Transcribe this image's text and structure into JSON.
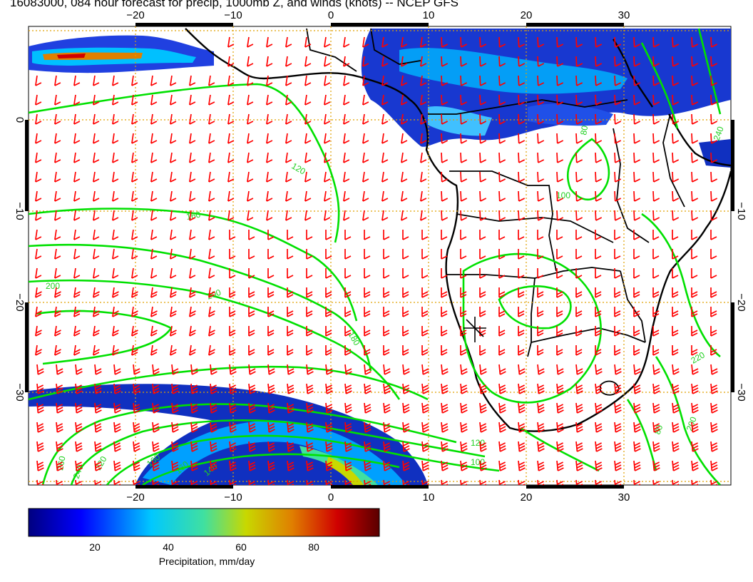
{
  "title": "16083000, 084 hour forecast for precip, 1000mb Z, and winds (knots) -- NCEP GFS",
  "lon_ticks": [
    "−20",
    "−10",
    "0",
    "10",
    "20",
    "30"
  ],
  "lat_ticks": [
    "0",
    "−10",
    "−20",
    "−30"
  ],
  "colorbar": {
    "label": "Precipitation, mm/day",
    "ticks": [
      "20",
      "40",
      "60",
      "80"
    ],
    "colors": [
      "#000080",
      "#0000ff",
      "#00c8ff",
      "#40e0a0",
      "#c8d800",
      "#e08000",
      "#d00000",
      "#5a0000"
    ]
  },
  "contour_labels": [
    "120",
    "160",
    "200",
    "180",
    "200",
    "240",
    "220",
    "260",
    "160",
    "120",
    "100",
    "80",
    "200",
    "220",
    "100",
    "160",
    "140",
    "80",
    "240"
  ],
  "colors": {
    "contour": "#00e000",
    "barb": "#ff0000",
    "grid": "#e0a000",
    "coast": "#000000"
  },
  "map_extent": {
    "lon": [
      -30,
      42
    ],
    "lat": [
      -40,
      10
    ]
  }
}
